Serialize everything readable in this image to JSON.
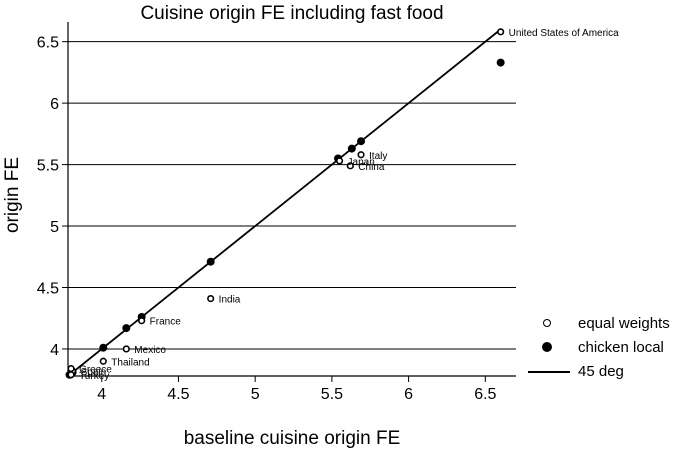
{
  "chart_data": {
    "type": "scatter",
    "title": "Cuisine origin FE including fast food",
    "xlabel": "baseline cuisine origin  FE",
    "ylabel": "origin FE",
    "xlim": [
      3.78,
      6.7
    ],
    "ylim": [
      3.78,
      6.66
    ],
    "xticks": [
      "4",
      "4.5",
      "5",
      "5.5",
      "6",
      "6.5"
    ],
    "yticks": [
      "4",
      "4.5",
      "5",
      "5.5",
      "6",
      "6.5"
    ],
    "grid": "horizontal",
    "legend_position": "bottom-right",
    "series": [
      {
        "name": "equal weights",
        "marker": "open-circle",
        "points": [
          {
            "x": 6.6,
            "y": 6.58,
            "label": "United States of America"
          },
          {
            "x": 5.69,
            "y": 5.58,
            "label": "Italy"
          },
          {
            "x": 5.62,
            "y": 5.49,
            "label": "China"
          },
          {
            "x": 5.55,
            "y": 5.53,
            "label": "Japan"
          },
          {
            "x": 4.71,
            "y": 4.41,
            "label": "India"
          },
          {
            "x": 4.26,
            "y": 4.23,
            "label": "France"
          },
          {
            "x": 4.16,
            "y": 4.0,
            "label": "Mexico"
          },
          {
            "x": 4.01,
            "y": 3.9,
            "label": "Thailand"
          },
          {
            "x": 3.81,
            "y": 3.82,
            "label": "Spain"
          },
          {
            "x": 3.8,
            "y": 3.84,
            "label": "Greece"
          },
          {
            "x": 3.8,
            "y": 3.79,
            "label": "Turkey"
          }
        ]
      },
      {
        "name": "chicken local",
        "marker": "filled-circle",
        "points": [
          {
            "x": 6.6,
            "y": 6.33
          },
          {
            "x": 5.69,
            "y": 5.69
          },
          {
            "x": 5.63,
            "y": 5.63
          },
          {
            "x": 5.54,
            "y": 5.55
          },
          {
            "x": 4.71,
            "y": 4.71
          },
          {
            "x": 4.26,
            "y": 4.26
          },
          {
            "x": 4.16,
            "y": 4.17
          },
          {
            "x": 4.01,
            "y": 4.01
          },
          {
            "x": 3.81,
            "y": 3.81
          },
          {
            "x": 3.8,
            "y": 3.8
          },
          {
            "x": 3.79,
            "y": 3.79
          }
        ]
      },
      {
        "name": "45 deg",
        "marker": "line",
        "x": [
          3.79,
          6.6
        ],
        "y": [
          3.79,
          6.6
        ]
      }
    ]
  }
}
